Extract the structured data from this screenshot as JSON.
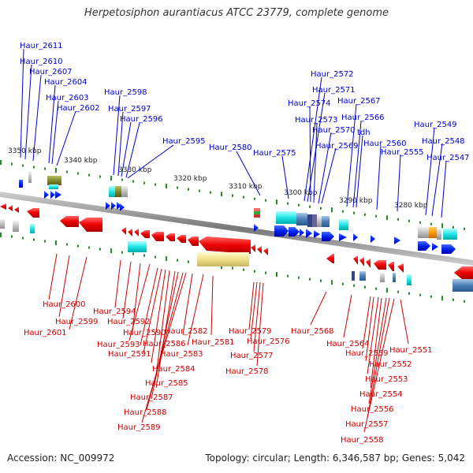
{
  "title": "Herpetosiphon aurantiacus ATCC 23779, complete genome",
  "footer": {
    "accession": "Accession: NC_009972",
    "summary": "Topology: circular; Length: 6,346,587 bp; Genes: 5,042"
  },
  "colors": {
    "plus_strand": "#0000cc",
    "minus_strand": "#cc0000",
    "backbone": "#888888",
    "tick": "#228b22"
  },
  "scale_labels": [
    "3350 kbp",
    "3340 kbp",
    "3330 kbp",
    "3320 kbp",
    "3310 kbp",
    "3300 kbp",
    "3290 kbp",
    "3280 kbp"
  ],
  "top_labels": [
    "Haur_2611",
    "Haur_2610",
    "Haur_2607",
    "Haur_2604",
    "Haur_2603",
    "Haur_2602",
    "Haur_2598",
    "Haur_2597",
    "Haur_2596",
    "Haur_2595",
    "Haur_2580",
    "Haur_2575",
    "Haur_2572",
    "Haur_2571",
    "Haur_2574",
    "Haur_2567",
    "Haur_2573",
    "Haur_2566",
    "Haur_2570",
    "tdh",
    "Haur_2569",
    "Haur_2560",
    "Haur_2555",
    "Haur_2549",
    "Haur_2548",
    "Haur_2547"
  ],
  "bottom_labels": [
    "Haur_2600",
    "Haur_2599",
    "Haur_2601",
    "Haur_2594",
    "Haur_2592",
    "Haur_2590",
    "Haur_2593",
    "Haur_2586",
    "Haur_2591",
    "Haur_2582",
    "Haur_2583",
    "Haur_2581",
    "Haur_2584",
    "Haur_2585",
    "Haur_2587",
    "Haur_2588",
    "Haur_2589",
    "Haur_2579",
    "Haur_2576",
    "Haur_2577",
    "Haur_2578",
    "Haur_2568",
    "Haur_2564",
    "Haur_2559",
    "Haur_2551",
    "Haur_2552",
    "Haur_2553",
    "Haur_2554",
    "Haur_2556",
    "Haur_2557",
    "Haur_2558"
  ]
}
